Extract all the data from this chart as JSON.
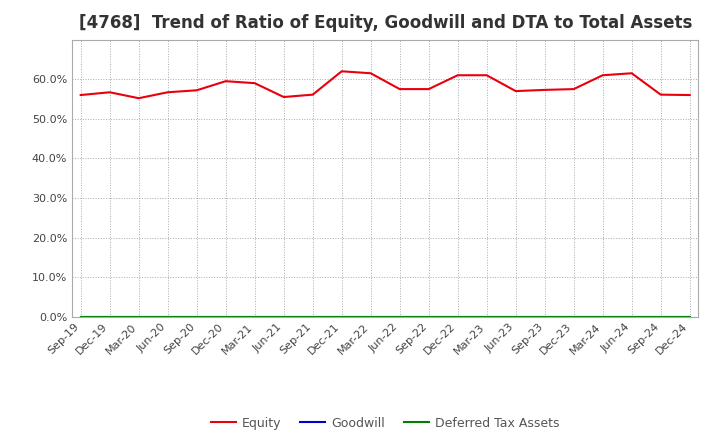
{
  "title": "[4768]  Trend of Ratio of Equity, Goodwill and DTA to Total Assets",
  "x_labels": [
    "Sep-19",
    "Dec-19",
    "Mar-20",
    "Jun-20",
    "Sep-20",
    "Dec-20",
    "Mar-21",
    "Jun-21",
    "Sep-21",
    "Dec-21",
    "Mar-22",
    "Jun-22",
    "Sep-22",
    "Dec-22",
    "Mar-23",
    "Jun-23",
    "Sep-23",
    "Dec-23",
    "Mar-24",
    "Jun-24",
    "Sep-24",
    "Dec-24"
  ],
  "equity": [
    56.0,
    56.7,
    55.2,
    56.7,
    57.2,
    59.5,
    59.0,
    55.5,
    56.1,
    62.0,
    61.5,
    57.5,
    57.5,
    61.0,
    61.0,
    57.0,
    57.3,
    57.5,
    61.0,
    61.5,
    56.1,
    56.0
  ],
  "goodwill": [
    0.0,
    0.0,
    0.0,
    0.0,
    0.0,
    0.0,
    0.0,
    0.0,
    0.0,
    0.0,
    0.0,
    0.0,
    0.0,
    0.0,
    0.0,
    0.0,
    0.0,
    0.0,
    0.0,
    0.0,
    0.0,
    0.0
  ],
  "dta": [
    0.0,
    0.0,
    0.0,
    0.0,
    0.0,
    0.0,
    0.0,
    0.0,
    0.0,
    0.0,
    0.0,
    0.0,
    0.0,
    0.0,
    0.0,
    0.0,
    0.0,
    0.0,
    0.0,
    0.0,
    0.0,
    0.0
  ],
  "equity_color": "#e8000d",
  "goodwill_color": "#0000cd",
  "dta_color": "#008000",
  "ylim": [
    0.0,
    70.0
  ],
  "yticks": [
    0.0,
    10.0,
    20.0,
    30.0,
    40.0,
    50.0,
    60.0
  ],
  "background_color": "#ffffff",
  "plot_bg_color": "#ffffff",
  "grid_color": "#aaaaaa",
  "title_fontsize": 12,
  "tick_fontsize": 8,
  "legend_fontsize": 9
}
